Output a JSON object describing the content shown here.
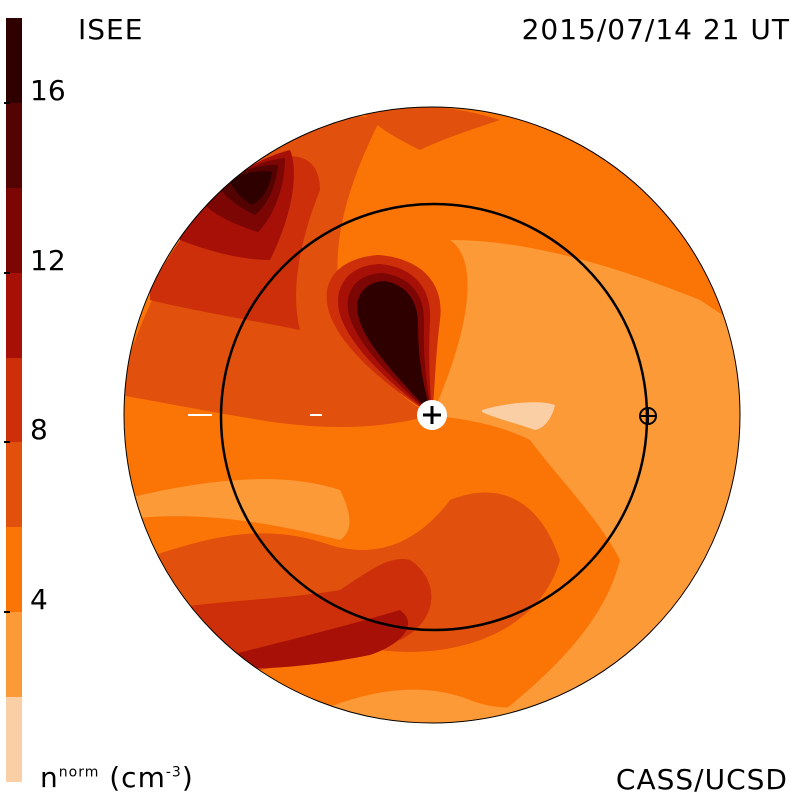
{
  "header": {
    "source": "ISEE",
    "timestamp": "2015/07/14 21 UT"
  },
  "footer": {
    "credit": "CASS/UCSD",
    "unit_base": "n",
    "unit_sup": "norm",
    "unit_paren": "(cm",
    "unit_exp": "-3",
    "unit_close": ")"
  },
  "chart_data": {
    "type": "heatmap",
    "title": "ISEE",
    "colorbar": {
      "label": "n^norm (cm^-3)",
      "range": [
        0,
        18
      ],
      "ticks": [
        4,
        8,
        12,
        16
      ],
      "tick_labels": [
        "4",
        "8",
        "12",
        "16"
      ],
      "levels": [
        {
          "min": 0,
          "max": 2,
          "color": "#fbcfa6"
        },
        {
          "min": 2,
          "max": 4,
          "color": "#fc9a38"
        },
        {
          "min": 4,
          "max": 6,
          "color": "#fb7506"
        },
        {
          "min": 6,
          "max": 8,
          "color": "#e1500c"
        },
        {
          "min": 8,
          "max": 10,
          "color": "#cc2f09"
        },
        {
          "min": 10,
          "max": 12,
          "color": "#a61007"
        },
        {
          "min": 12,
          "max": 14,
          "color": "#7b0604"
        },
        {
          "min": 14,
          "max": 16,
          "color": "#520302"
        },
        {
          "min": 16,
          "max": 18,
          "color": "#2e0000"
        }
      ]
    },
    "markers": [
      {
        "name": "sun",
        "symbol": "+"
      },
      {
        "name": "earth",
        "symbol": "⊕"
      }
    ]
  }
}
